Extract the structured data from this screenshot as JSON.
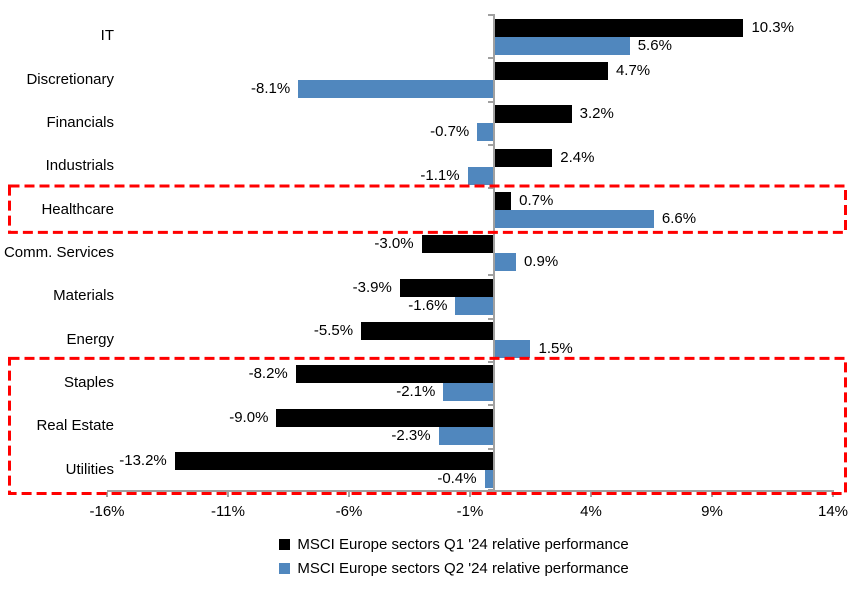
{
  "chart_data": {
    "type": "bar",
    "orientation": "horizontal",
    "title": "",
    "xlabel": "",
    "ylabel": "",
    "xlim": [
      -16,
      14
    ],
    "grid": false,
    "legend_position": "bottom",
    "axis_color": "#a0a0a0",
    "categories": [
      "IT",
      "Discretionary",
      "Financials",
      "Industrials",
      "Healthcare",
      "Comm. Services",
      "Materials",
      "Energy",
      "Staples",
      "Real Estate",
      "Utilities"
    ],
    "series": [
      {
        "name": "MSCI Europe sectors Q1 '24 relative performance",
        "color": "#000000",
        "values": [
          10.3,
          4.7,
          3.2,
          2.4,
          0.7,
          -3.0,
          -3.9,
          -5.5,
          -8.2,
          -9.0,
          -13.2
        ],
        "labels": [
          "10.3%",
          "4.7%",
          "3.2%",
          "2.4%",
          "0.7%",
          "-3.0%",
          "-3.9%",
          "-5.5%",
          "-8.2%",
          "-9.0%",
          "-13.2%"
        ]
      },
      {
        "name": "MSCI Europe sectors Q2 '24 relative performance",
        "color": "#5087be",
        "values": [
          5.6,
          -8.1,
          -0.7,
          -1.1,
          6.6,
          0.9,
          -1.6,
          1.5,
          -2.1,
          -2.3,
          -0.4
        ],
        "labels": [
          "5.6%",
          "-8.1%",
          "-0.7%",
          "-1.1%",
          "6.6%",
          "0.9%",
          "-1.6%",
          "1.5%",
          "-2.1%",
          "-2.3%",
          "-0.4%"
        ]
      }
    ],
    "x_ticks": {
      "values": [
        -16,
        -11,
        -6,
        -1,
        4,
        9,
        14
      ],
      "labels": [
        "-16%",
        "-11%",
        "-6%",
        "-1%",
        "4%",
        "9%",
        "14%"
      ]
    },
    "highlights": [
      {
        "categories": [
          "Healthcare"
        ],
        "row_start": 4,
        "row_end": 4,
        "color": "#ff0000",
        "style": "dashed"
      },
      {
        "categories": [
          "Staples",
          "Real Estate",
          "Utilities"
        ],
        "row_start": 8,
        "row_end": 10,
        "color": "#ff0000",
        "style": "dashed"
      }
    ]
  },
  "legend": {
    "items": [
      {
        "label": "MSCI Europe sectors Q1 '24 relative performance",
        "color": "#000000"
      },
      {
        "label": "MSCI Europe sectors Q2 '24 relative performance",
        "color": "#5087be"
      }
    ]
  }
}
